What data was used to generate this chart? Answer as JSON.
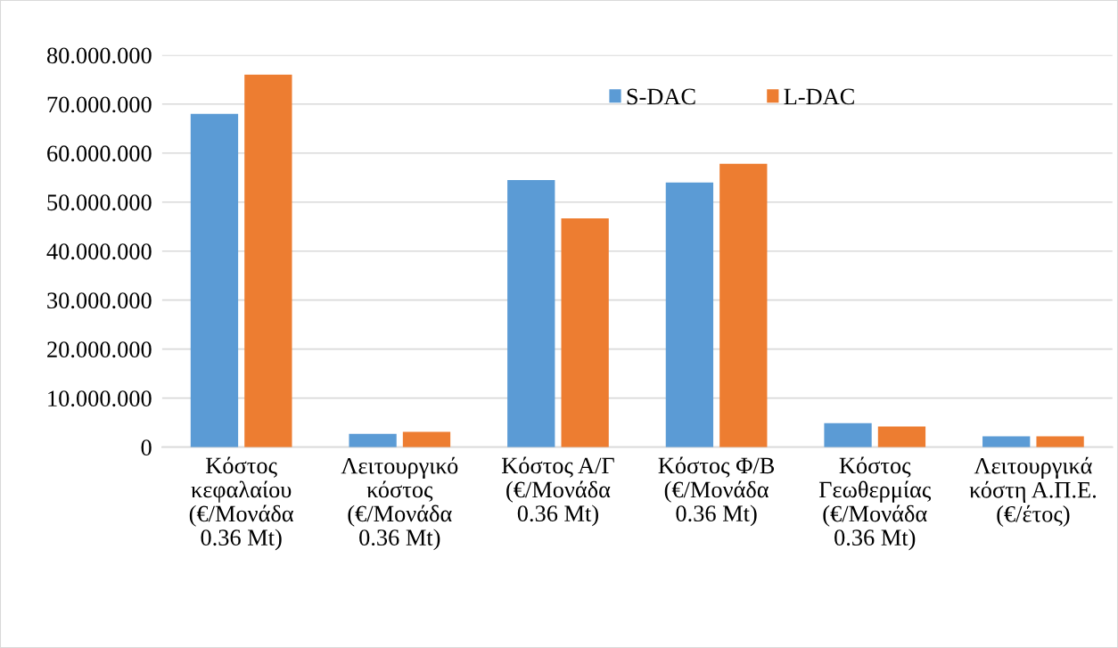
{
  "chart_data": {
    "type": "bar",
    "categories": [
      "Κόστος\nκεφαλαίου\n(€/Μονάδα\n0.36 Mt)",
      "Λειτουργικό\nκόστος\n(€/Μονάδα\n0.36 Mt)",
      "Κόστος Α/Γ\n(€/Μονάδα\n0.36 Mt)",
      "Κόστος Φ/Β\n(€/Μονάδα\n0.36 Mt)",
      "Κόστος\nΓεωθερμίας\n(€/Μονάδα\n0.36 Mt)",
      "Λειτουργικά\nκόστη Α.Π.Ε.\n(€/έτος)"
    ],
    "series": [
      {
        "name": "S-DAC",
        "color": "#5b9bd5",
        "values": [
          68000000,
          2700000,
          54500000,
          54000000,
          4900000,
          2200000
        ]
      },
      {
        "name": "L-DAC",
        "color": "#ed7d31",
        "values": [
          76000000,
          3100000,
          46700000,
          57800000,
          4200000,
          2200000
        ]
      }
    ],
    "ylim": [
      0,
      80000000
    ],
    "yticks": [
      {
        "value": 0,
        "label": "0"
      },
      {
        "value": 10000000,
        "label": "10.000.000"
      },
      {
        "value": 20000000,
        "label": "20.000.000"
      },
      {
        "value": 30000000,
        "label": "30.000.000"
      },
      {
        "value": 40000000,
        "label": "40.000.000"
      },
      {
        "value": 50000000,
        "label": "50.000.000"
      },
      {
        "value": 60000000,
        "label": "60.000.000"
      },
      {
        "value": 70000000,
        "label": "70.000.000"
      },
      {
        "value": 80000000,
        "label": "80.000.000"
      }
    ],
    "grid": "y",
    "legend": "top"
  }
}
